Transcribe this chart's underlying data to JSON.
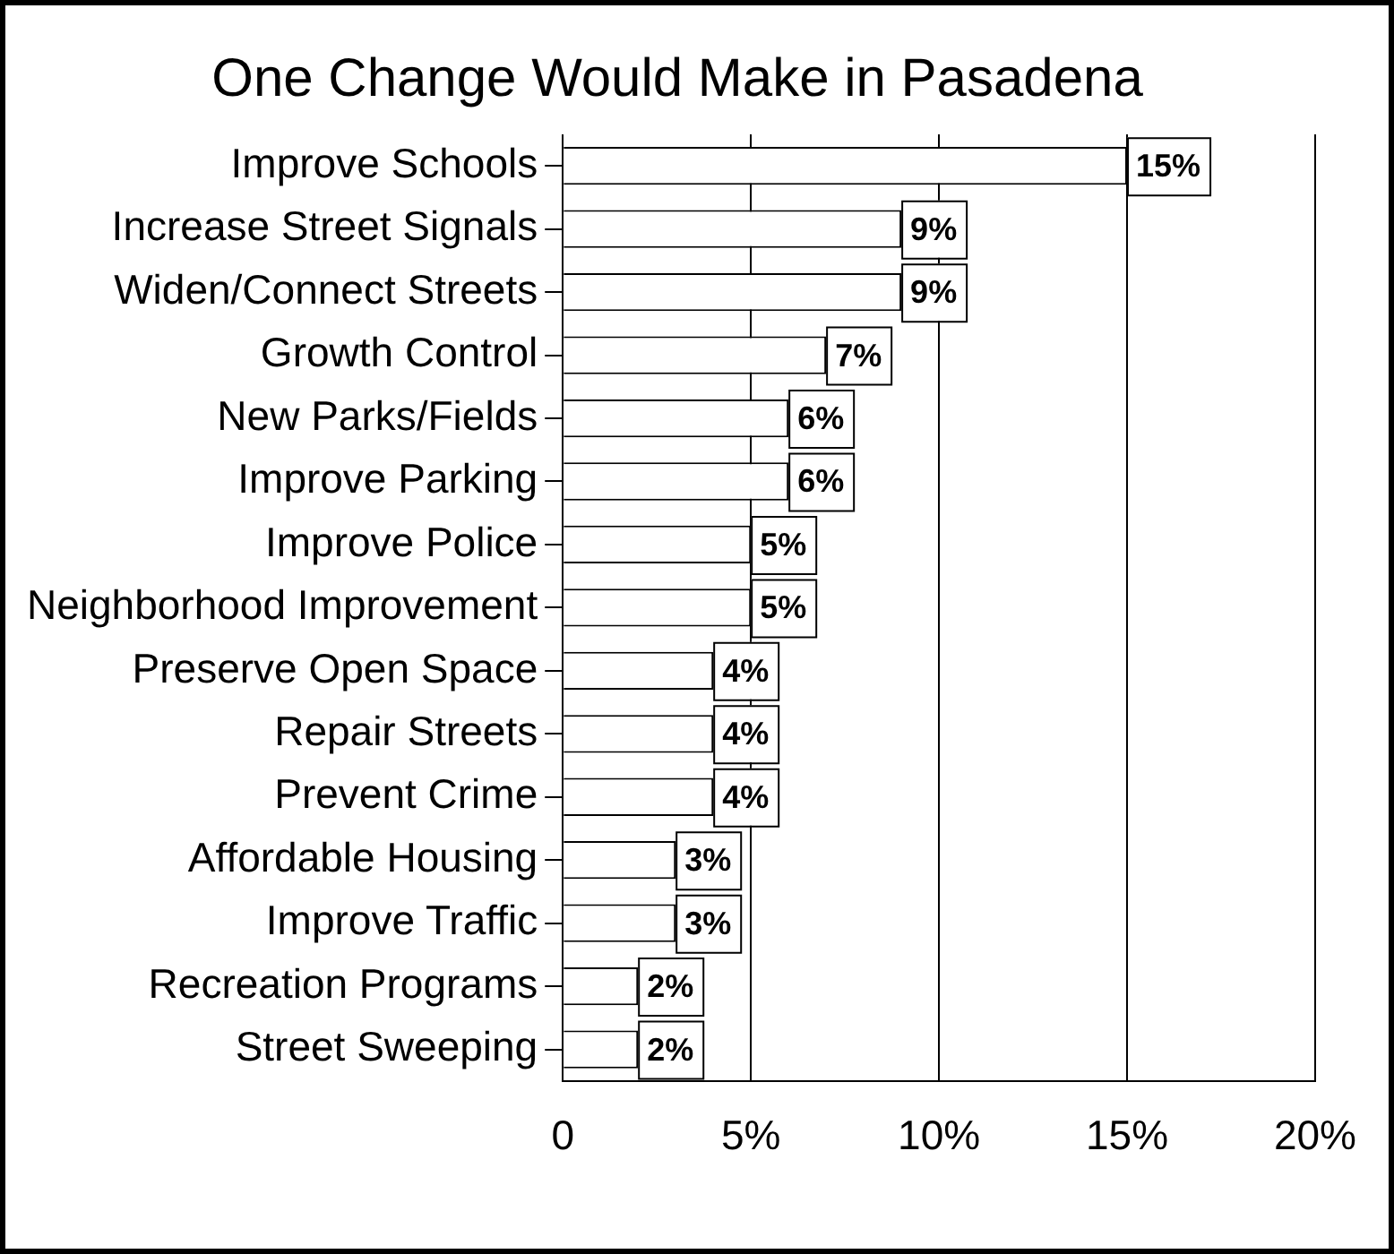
{
  "chart_data": {
    "type": "bar",
    "orientation": "horizontal",
    "title": "One Change Would Make in Pasadena",
    "categories": [
      "Improve Schools",
      "Increase Street Signals",
      "Widen/Connect Streets",
      "Growth Control",
      "New Parks/Fields",
      "Improve Parking",
      "Improve Police",
      "Neighborhood Improvement",
      "Preserve Open Space",
      "Repair Streets",
      "Prevent Crime",
      "Affordable Housing",
      "Improve Traffic",
      "Recreation Programs",
      "Street Sweeping"
    ],
    "values": [
      15,
      9,
      9,
      7,
      6,
      6,
      5,
      5,
      4,
      4,
      4,
      3,
      3,
      2,
      2
    ],
    "value_labels": [
      "15%",
      "9%",
      "9%",
      "7%",
      "6%",
      "6%",
      "5%",
      "5%",
      "4%",
      "4%",
      "4%",
      "3%",
      "3%",
      "2%",
      "2%"
    ],
    "color": "#ffffff",
    "xlim": [
      0,
      20
    ],
    "xticks": [
      {
        "value": 0,
        "label": "0"
      },
      {
        "value": 5,
        "label": "5%"
      },
      {
        "value": 10,
        "label": "10%"
      },
      {
        "value": 15,
        "label": "15%"
      },
      {
        "value": 20,
        "label": "20%"
      }
    ],
    "grid": "x"
  }
}
